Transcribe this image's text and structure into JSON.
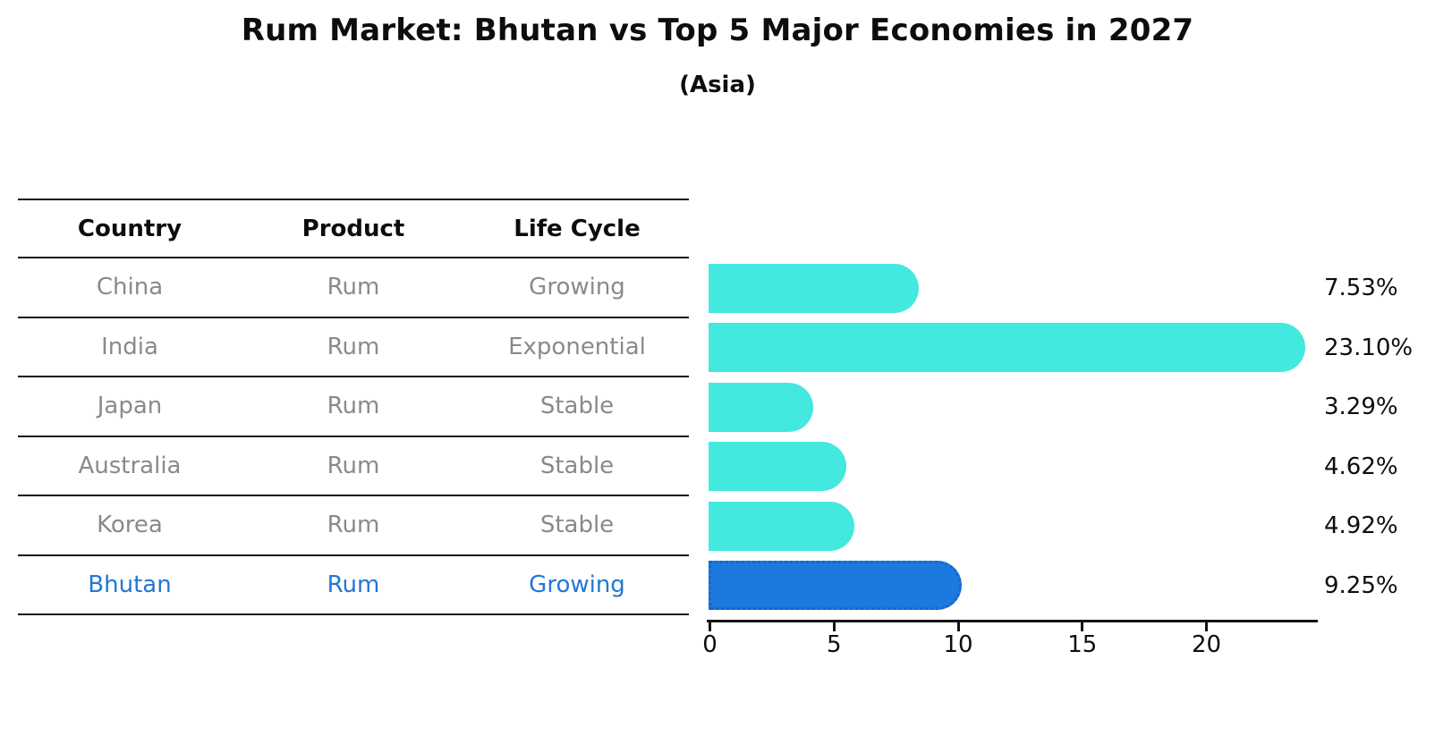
{
  "title": "Rum Market: Bhutan vs Top 5 Major Economies in 2027",
  "subtitle": "(Asia)",
  "table": {
    "headers": [
      "Country",
      "Product",
      "Life Cycle"
    ],
    "rows": [
      {
        "country": "China",
        "product": "Rum",
        "life_cycle": "Growing",
        "highlight": false
      },
      {
        "country": "India",
        "product": "Rum",
        "life_cycle": "Exponential",
        "highlight": false
      },
      {
        "country": "Japan",
        "product": "Rum",
        "life_cycle": "Stable",
        "highlight": false
      },
      {
        "country": "Australia",
        "product": "Rum",
        "life_cycle": "Stable",
        "highlight": false
      },
      {
        "country": "Korea",
        "product": "Rum",
        "life_cycle": "Stable",
        "highlight": false
      },
      {
        "country": "Bhutan",
        "product": "Rum",
        "life_cycle": "Growing",
        "highlight": true
      }
    ]
  },
  "chart_data": {
    "type": "bar",
    "orientation": "horizontal",
    "title": "Rum Market: Bhutan vs Top 5 Major Economies in 2027 (Asia)",
    "categories": [
      "China",
      "India",
      "Japan",
      "Australia",
      "Korea",
      "Bhutan"
    ],
    "values": [
      7.53,
      23.1,
      3.29,
      4.62,
      4.92,
      9.25
    ],
    "value_labels": [
      "7.53%",
      "23.10%",
      "3.29%",
      "4.62%",
      "4.92%",
      "9.25%"
    ],
    "x_ticks": [
      0,
      5,
      10,
      15,
      20
    ],
    "xlim": [
      0,
      24.5
    ],
    "grid": false,
    "legend": "none",
    "bar_color": "#43e8df",
    "highlight_color": "#1c79dd",
    "highlight_index": 5
  }
}
